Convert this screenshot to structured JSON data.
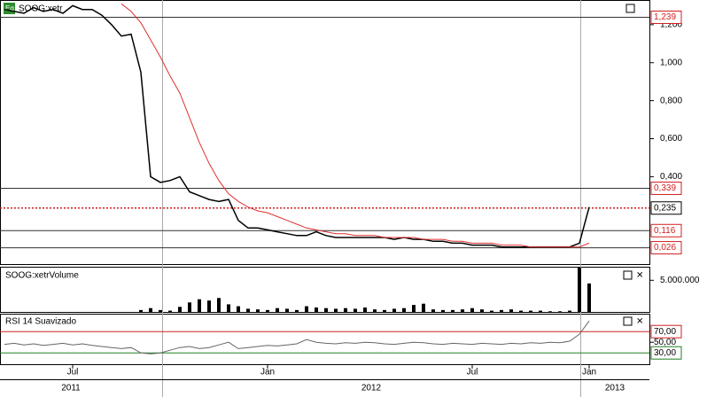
{
  "chart_data": [
    {
      "type": "line",
      "title": "SOOG:xetr",
      "categories": [
        null,
        null,
        null,
        null,
        null,
        null,
        null,
        "Jul",
        null,
        null,
        null,
        null,
        null,
        null,
        null,
        null,
        null,
        null,
        null,
        null,
        null,
        null,
        null,
        null,
        null,
        null,
        null,
        "Jan",
        null,
        null,
        null,
        null,
        null,
        null,
        null,
        null,
        null,
        null,
        null,
        null,
        null,
        null,
        null,
        null,
        null,
        null,
        null,
        null,
        "Jul",
        null,
        null,
        null,
        null,
        null,
        null,
        null,
        null,
        null,
        null,
        null,
        "Jan"
      ],
      "year_labels": [
        "2011",
        "2012",
        "2013"
      ],
      "series": [
        {
          "name": "SOOG:xetr",
          "color": "#000000",
          "values": [
            1.28,
            1.27,
            1.26,
            1.29,
            1.27,
            1.28,
            1.26,
            1.3,
            1.28,
            1.28,
            1.25,
            1.2,
            1.14,
            1.15,
            0.95,
            0.4,
            0.37,
            0.38,
            0.4,
            0.32,
            0.3,
            0.28,
            0.27,
            0.28,
            0.17,
            0.13,
            0.13,
            0.12,
            0.11,
            0.1,
            0.09,
            0.09,
            0.11,
            0.09,
            0.08,
            0.08,
            0.08,
            0.08,
            0.08,
            0.08,
            0.07,
            0.08,
            0.07,
            0.07,
            0.06,
            0.06,
            0.05,
            0.05,
            0.04,
            0.04,
            0.04,
            0.03,
            0.03,
            0.03,
            0.03,
            0.03,
            0.03,
            0.03,
            0.03,
            0.05,
            0.24
          ]
        },
        {
          "color": "#e03030",
          "values": [
            null,
            null,
            null,
            null,
            null,
            null,
            null,
            null,
            null,
            null,
            null,
            null,
            1.31,
            1.27,
            1.21,
            1.12,
            1.03,
            0.93,
            0.84,
            0.71,
            0.58,
            0.47,
            0.38,
            0.31,
            0.27,
            0.24,
            0.22,
            0.21,
            0.19,
            0.17,
            0.15,
            0.13,
            0.12,
            0.11,
            0.1,
            0.1,
            0.09,
            0.09,
            0.09,
            0.08,
            0.08,
            0.08,
            0.08,
            0.07,
            0.07,
            0.07,
            0.06,
            0.06,
            0.05,
            0.05,
            0.05,
            0.04,
            0.04,
            0.04,
            0.03,
            0.03,
            0.03,
            0.03,
            0.03,
            0.03,
            0.05
          ]
        }
      ],
      "ylim": [
        -0.06,
        1.33
      ],
      "yticks": [
        {
          "value": 0.4,
          "label": "0,400"
        },
        {
          "value": 0.6,
          "label": "0,600"
        },
        {
          "value": 0.8,
          "label": "0,800"
        },
        {
          "value": 1.0,
          "label": "1,000"
        },
        {
          "value": 1.2,
          "label": "1,200"
        }
      ],
      "levels": [
        {
          "value": 1.239,
          "label": "1,239"
        },
        {
          "value": 0.339,
          "label": "0,339"
        },
        {
          "value": 0.235,
          "label": "0,235"
        },
        {
          "value": 0.116,
          "label": "0,116"
        },
        {
          "value": 0.026,
          "label": "0,026"
        }
      ]
    },
    {
      "type": "bar",
      "title": "SOOG:xetrVolume",
      "color": "#000000",
      "values": [
        0,
        0,
        0,
        0,
        0,
        0,
        0,
        0,
        0,
        0,
        0,
        0,
        0,
        0,
        300000,
        600000,
        300000,
        200000,
        800000,
        1500000,
        2000000,
        1800000,
        2200000,
        1200000,
        900000,
        500000,
        400000,
        300000,
        600000,
        500000,
        300000,
        900000,
        700000,
        600000,
        500000,
        600000,
        500000,
        700000,
        400000,
        300000,
        500000,
        600000,
        1100000,
        1300000,
        400000,
        300000,
        300000,
        400000,
        600000,
        400000,
        200000,
        300000,
        400000,
        200000,
        200000,
        200000,
        100000,
        100000,
        200000,
        7000000,
        4500000
      ],
      "ylim": [
        0,
        7000000
      ],
      "yticks": [
        {
          "value": 5000000,
          "label": "5.000.000"
        }
      ]
    },
    {
      "type": "line",
      "title": "RSI 14 Suavizado",
      "color": "#666666",
      "values": [
        46,
        48,
        45,
        47,
        44,
        46,
        48,
        45,
        47,
        44,
        42,
        40,
        38,
        40,
        30,
        28,
        30,
        35,
        40,
        42,
        38,
        40,
        45,
        50,
        38,
        40,
        42,
        44,
        43,
        45,
        47,
        55,
        50,
        48,
        47,
        49,
        48,
        50,
        49,
        47,
        46,
        48,
        50,
        49,
        47,
        46,
        48,
        47,
        46,
        48,
        47,
        46,
        48,
        47,
        49,
        48,
        50,
        49,
        52,
        65,
        90
      ],
      "ylim": [
        7,
        102
      ],
      "yticks": [
        {
          "value": 70,
          "label": "70,00"
        },
        {
          "value": 50,
          "label": "50,00"
        },
        {
          "value": 30,
          "label": "30,00"
        }
      ]
    }
  ]
}
